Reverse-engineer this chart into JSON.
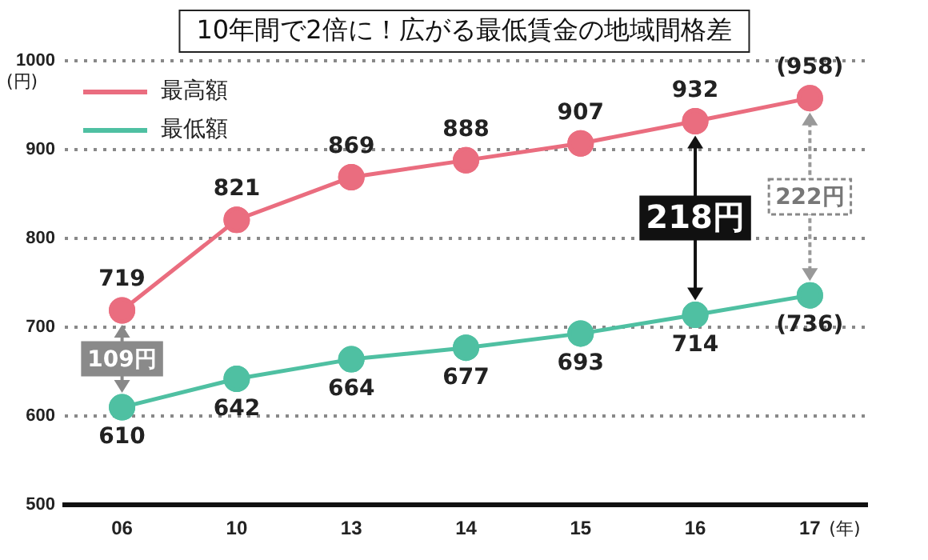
{
  "chart_data": {
    "type": "line",
    "title": "10年間で2倍に！広がる最低賃金の地域間格差",
    "xlabel": "(年)",
    "ylabel": "(円)",
    "categories": [
      "06",
      "10",
      "13",
      "14",
      "15",
      "16",
      "17"
    ],
    "series": [
      {
        "name": "最高額",
        "color": "#ea6d7f",
        "values": [
          719,
          821,
          869,
          888,
          907,
          932,
          958
        ],
        "value_labels": [
          "719",
          "821",
          "869",
          "888",
          "907",
          "932",
          "(958)"
        ]
      },
      {
        "name": "最低額",
        "color": "#4fc0a2",
        "values": [
          610,
          642,
          664,
          677,
          693,
          714,
          736
        ],
        "value_labels": [
          "610",
          "642",
          "664",
          "677",
          "693",
          "714",
          "(736)"
        ]
      }
    ],
    "ylim": [
      500,
      1000
    ],
    "yticks": [
      500,
      600,
      700,
      800,
      900,
      1000
    ],
    "grid": "y",
    "legend": "top left",
    "marker": "circle",
    "line_style": "solid",
    "annotations": [
      "109円",
      "218円",
      "222円"
    ]
  }
}
